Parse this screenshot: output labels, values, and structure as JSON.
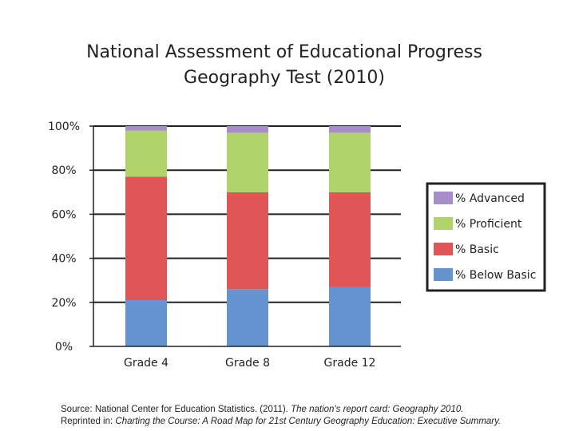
{
  "title": {
    "line1": "National Assessment of Educational Progress",
    "line2": "Geography Test (2010)"
  },
  "chart_data": {
    "type": "bar",
    "stacked": true,
    "categories": [
      "Grade 4",
      "Grade 8",
      "Grade 12"
    ],
    "y_ticks": [
      "0%",
      "20%",
      "40%",
      "60%",
      "80%",
      "100%"
    ],
    "ylim": [
      0,
      100
    ],
    "grid": true,
    "legend_position": "right",
    "series": [
      {
        "name": "% Below Basic",
        "color": "#6495d2",
        "values": [
          21,
          26,
          27
        ]
      },
      {
        "name": "% Basic",
        "color": "#e05555",
        "values": [
          56,
          44,
          43
        ]
      },
      {
        "name": "% Proficient",
        "color": "#b1d46a",
        "values": [
          21,
          27,
          27
        ]
      },
      {
        "name": "% Advanced",
        "color": "#a88ec8",
        "values": [
          2,
          3,
          3
        ]
      }
    ]
  },
  "source": {
    "line1_prefix": "Source: National Center for Education Statistics. (2011). ",
    "line1_italic": "The nation's report card: Geography 2010.",
    "line2_prefix": "Reprinted in: ",
    "line2_italic": "Charting the Course: A Road Map for 21st Century Geography Education: Executive Summary."
  }
}
